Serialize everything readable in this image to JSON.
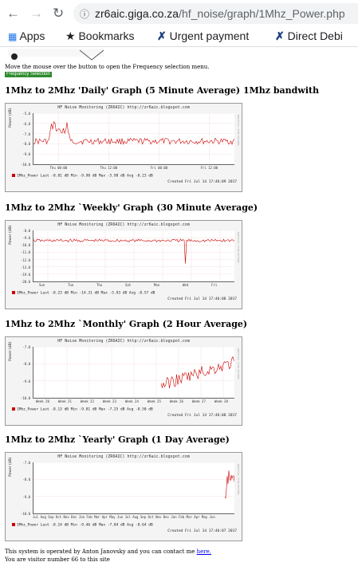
{
  "browser": {
    "url_host": "zr6aic.giga.co.za",
    "url_path": "/hf_noise/graph/1Mhz_Power.php",
    "bookmarks": [
      {
        "label": "Apps",
        "icon": "apps-grid-icon"
      },
      {
        "label": "Bookmarks",
        "icon": "star-icon"
      },
      {
        "label": "Urgent payment",
        "icon": "x-bookmark-icon"
      },
      {
        "label": "Direct Debi",
        "icon": "x-bookmark-icon"
      }
    ]
  },
  "page": {
    "hint_text": "Move the mouse over the button to open the Frequency selection menu.",
    "freq_button_label": "Frequency Selection",
    "contact_text": "This system is operated by Anton Janovsky and you can contact me",
    "contact_link": "here.",
    "visitor_text": "You are visitor number 66 to this site"
  },
  "graphs": [
    {
      "heading": "1Mhz to 2Mhz 'Daily' Graph (5 Minute Average) 1Mhz bandwith",
      "title": "HF Noise Monitoring (ZR6AIC) http://zr6aic.blogspot.com",
      "ylabel": "Power (dB)",
      "side_text": "RRDTOOL / TOBI OETIKER",
      "yticks": [
        "-5.0",
        "-6.0",
        "-7.0",
        "-8.0",
        "-9.0",
        "-10.0"
      ],
      "xticks": [
        "Thu 00:00",
        "Thu 12:00",
        "Fri 00:00",
        "Fri 12:00"
      ],
      "legend": "1Mhz_Power   Last  -8.81 dB   Min  -9.98 dB   Max  -5.98 dB   Avg  -8.23 dB",
      "created": "Created Fri Jul 14 17:46:09 2017"
    },
    {
      "heading": "1Mhz to 2Mhz `Weekly' Graph (30 Minute Average)",
      "title": "HF Noise Monitoring (ZR6AIC) http://zr6aic.blogspot.com",
      "ylabel": "Power (dB)",
      "side_text": "RRDTOOL / TOBI OETIKER",
      "yticks": [
        "-8.0",
        "-9.0",
        "-10.0",
        "-11.0",
        "-12.0",
        "-13.0",
        "-19.0",
        "-20.0"
      ],
      "xticks": [
        "Sun",
        "Tue",
        "Thu",
        "Sat",
        "Mon",
        "Wed",
        "Fri"
      ],
      "legend": "1Mhz_Power   Last  -8.23 dB   Min -14.31 dB   Max  -5.93 dB   Avg  -8.57 dB",
      "created": "Created Fri Jul 14 17:46:08 2017"
    },
    {
      "heading": "1Mhz to 2Mhz `Monthly' Graph (2 Hour Average)",
      "title": "HF Noise Monitoring (ZR6AIC) http://zr6aic.blogspot.com",
      "ylabel": "Power (dB)",
      "side_text": "RRDTOOL / TOBI OETIKER",
      "yticks": [
        "-7.0",
        "-8.0",
        "-9.0",
        "-10.0"
      ],
      "xticks": [
        "Week 20",
        "Week 21",
        "Week 22",
        "Week 23",
        "Week 24",
        "Week 25",
        "Week 26",
        "Week 27",
        "Week 28"
      ],
      "legend": "1Mhz_Power   Last  -8.13 dB   Min  -9.81 dB   Max  -7.25 dB   Avg  -8.50 dB",
      "created": "Created Fri Jul 14 17:46:08 2017"
    },
    {
      "heading": "1Mhz to 2Mhz `Yearly' Graph (1 Day Average)",
      "title": "HF Noise Monitoring (ZR6AIC) http://zr6aic.blogspot.com",
      "ylabel": "Power (dB)",
      "side_text": "RRDTOOL / TOBI OETIKER",
      "yticks": [
        "-7.0",
        "-8.0",
        "-9.0",
        "-10.0"
      ],
      "xticks": [
        "Jul Aug Sep Oct Nov Dec Jan Feb Mar Apr May Jun Jul Aug Sep Oct Nov Dec Jan Feb Mar Apr May Jun"
      ],
      "legend": "1Mhz_Power   Last  -8.14 dB   Min  -9.46 dB   Max  -7.84 dB   Avg  -8.64 dB",
      "created": "Created Fri Jul 14 17:46:07 2017"
    }
  ],
  "colors": {
    "series": "#cc0000",
    "grid": "#e8b0b0",
    "freq_button": "#2e8b2e"
  }
}
